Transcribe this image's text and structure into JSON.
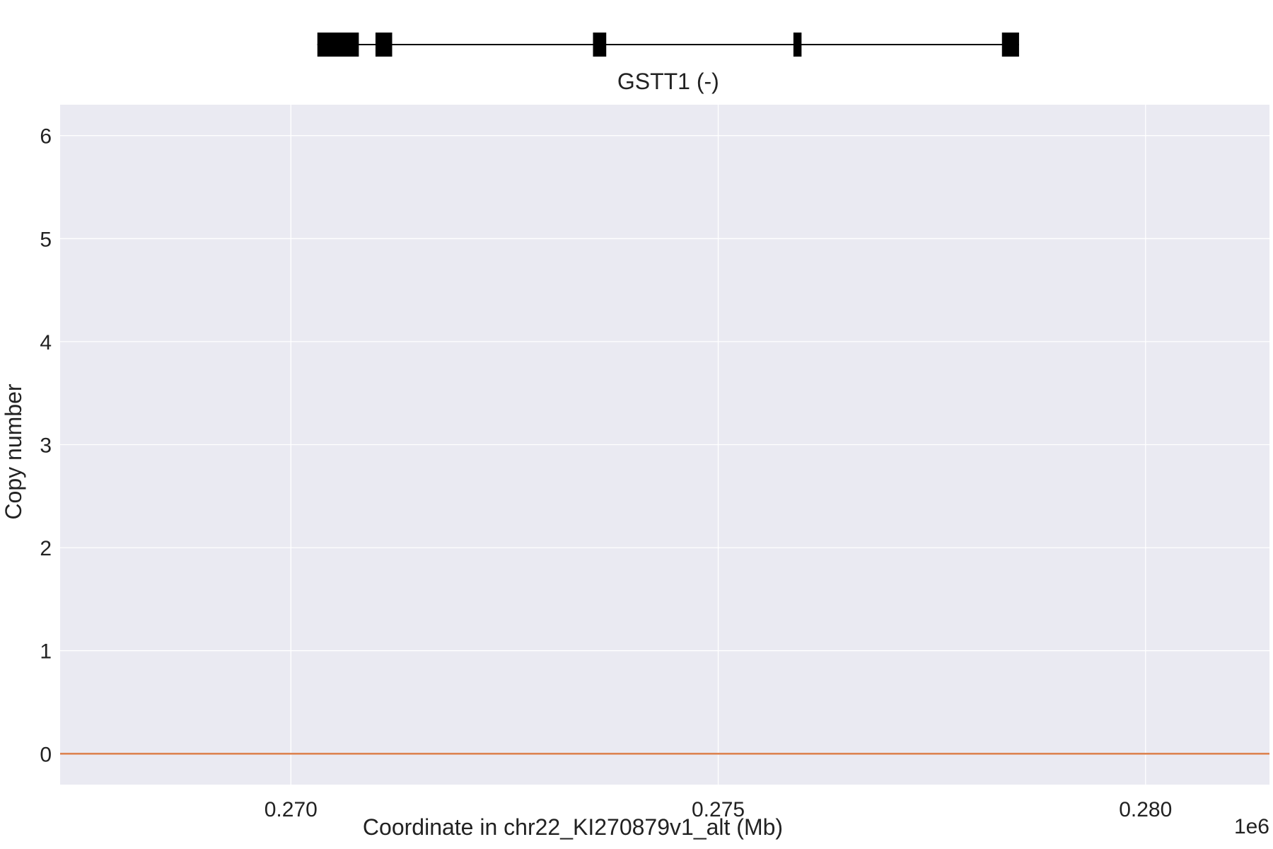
{
  "chart_data": {
    "type": "line",
    "gene_track": {
      "label": "GSTT1 (-)",
      "strand": "-",
      "span": [
        270310,
        278520
      ],
      "exons": [
        [
          270310,
          270795
        ],
        [
          270990,
          271185
        ],
        [
          273535,
          273690
        ],
        [
          275880,
          275975
        ],
        [
          278320,
          278520
        ]
      ]
    },
    "series": [
      {
        "x": [
          267300,
          281450
        ],
        "y": [
          0,
          0
        ],
        "color": "#dd8452"
      }
    ],
    "xlabel": "Coordinate in chr22_KI270879v1_alt (Mb)",
    "ylabel": "Copy number",
    "x_offset_label": "1e6",
    "xlim": [
      267300,
      281450
    ],
    "ylim": [
      -0.3,
      6.3
    ],
    "x_ticks": [
      {
        "value": 270000,
        "label": "0.270"
      },
      {
        "value": 275000,
        "label": "0.275"
      },
      {
        "value": 280000,
        "label": "0.280"
      }
    ],
    "y_ticks": [
      {
        "value": 0,
        "label": "0"
      },
      {
        "value": 1,
        "label": "1"
      },
      {
        "value": 2,
        "label": "2"
      },
      {
        "value": 3,
        "label": "3"
      },
      {
        "value": 4,
        "label": "4"
      },
      {
        "value": 5,
        "label": "5"
      },
      {
        "value": 6,
        "label": "6"
      }
    ],
    "grid": true,
    "colors": {
      "plot_background": "#eaeaf2",
      "grid": "#ffffff",
      "gene": "#000000",
      "text": "#222222"
    }
  }
}
